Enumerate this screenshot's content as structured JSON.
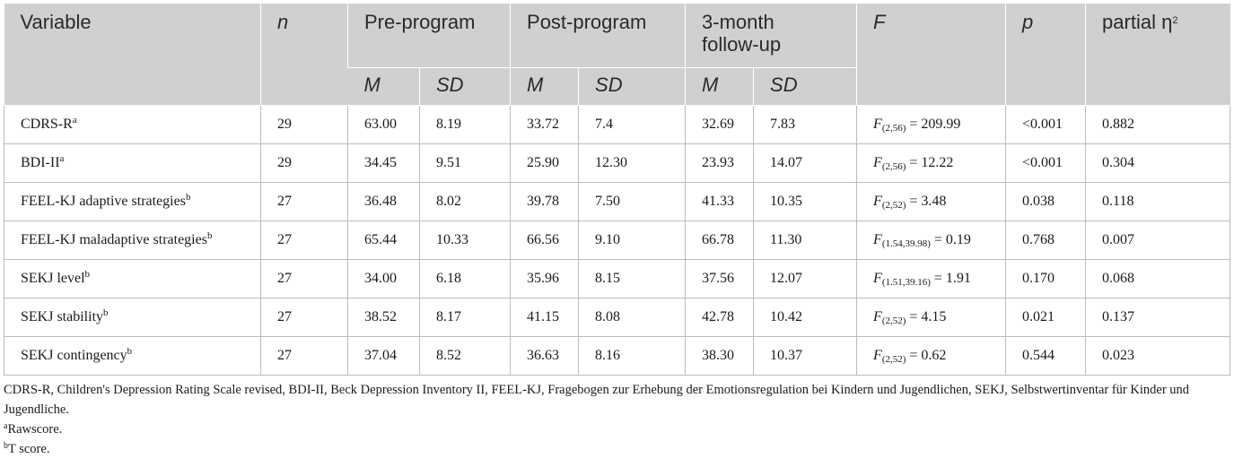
{
  "headers": {
    "variable": "Variable",
    "n": "n",
    "pre": "Pre-program",
    "post": "Post-program",
    "follow_line1": "3-month",
    "follow_line2": "follow-up",
    "f": "F",
    "p": "p",
    "eta": "partial η",
    "eta_sup": "2",
    "m": "M",
    "sd": "SD"
  },
  "rows": [
    {
      "variable": "CDRS-R",
      "sup": "a",
      "n": "29",
      "pre_m": "63.00",
      "pre_sd": "8.19",
      "post_m": "33.72",
      "post_sd": "7.4",
      "fu_m": "32.69",
      "fu_sd": "7.83",
      "f_df": "(2,56)",
      "f_val": " = 209.99",
      "p": "<0.001",
      "eta": "0.882"
    },
    {
      "variable": "BDI-II",
      "sup": "a",
      "n": "29",
      "pre_m": "34.45",
      "pre_sd": "9.51",
      "post_m": "25.90",
      "post_sd": "12.30",
      "fu_m": "23.93",
      "fu_sd": "14.07",
      "f_df": "(2,56)",
      "f_val": " = 12.22",
      "p": "<0.001",
      "eta": "0.304"
    },
    {
      "variable": "FEEL-KJ adaptive strategies",
      "sup": "b",
      "n": "27",
      "pre_m": "36.48",
      "pre_sd": "8.02",
      "post_m": "39.78",
      "post_sd": "7.50",
      "fu_m": "41.33",
      "fu_sd": "10.35",
      "f_df": "(2,52)",
      "f_val": " = 3.48",
      "p": "0.038",
      "eta": "0.118"
    },
    {
      "variable": "FEEL-KJ maladaptive strategies",
      "sup": "b",
      "n": "27",
      "pre_m": "65.44",
      "pre_sd": "10.33",
      "post_m": "66.56",
      "post_sd": "9.10",
      "fu_m": "66.78",
      "fu_sd": "11.30",
      "f_df": "(1.54,39.98)",
      "f_val": " = 0.19",
      "p": "0.768",
      "eta": "0.007"
    },
    {
      "variable": "SEKJ level",
      "sup": "b",
      "n": "27",
      "pre_m": "34.00",
      "pre_sd": "6.18",
      "post_m": "35.96",
      "post_sd": "8.15",
      "fu_m": "37.56",
      "fu_sd": "12.07",
      "f_df": "(1.51,39.16)",
      "f_val": " = 1.91",
      "p": "0.170",
      "eta": "0.068"
    },
    {
      "variable": "SEKJ stability",
      "sup": "b",
      "n": "27",
      "pre_m": "38.52",
      "pre_sd": "8.17",
      "post_m": "41.15",
      "post_sd": "8.08",
      "fu_m": "42.78",
      "fu_sd": "10.42",
      "f_df": "(2,52)",
      "f_val": " = 4.15",
      "p": "0.021",
      "eta": "0.137"
    },
    {
      "variable": "SEKJ contingency",
      "sup": "b",
      "n": "27",
      "pre_m": "37.04",
      "pre_sd": "8.52",
      "post_m": "36.63",
      "post_sd": "8.16",
      "fu_m": "38.30",
      "fu_sd": "10.37",
      "f_df": "(2,52)",
      "f_val": " = 0.62",
      "p": "0.544",
      "eta": "0.023"
    }
  ],
  "footnotes": {
    "abbreviations": "CDRS-R, Children's Depression Rating Scale revised, BDI-II, Beck Depression Inventory II, FEEL-KJ, Fragebogen zur Erhebung der Emotionsregulation bei Kindern und Jugendlichen, SEKJ, Selbstwertinventar für Kinder und Jugendliche.",
    "a_mark": "a",
    "a_text": "Rawscore.",
    "b_mark": "b",
    "b_text": "T score."
  }
}
